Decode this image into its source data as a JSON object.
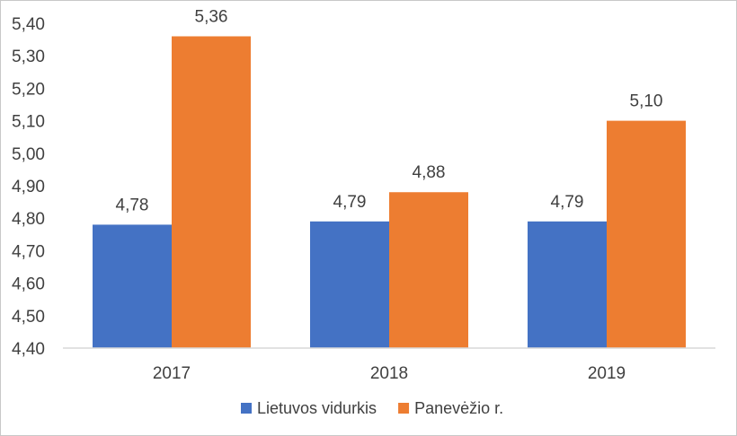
{
  "chart_data": {
    "type": "bar",
    "title": "",
    "xlabel": "",
    "ylabel": "",
    "categories": [
      "2017",
      "2018",
      "2019"
    ],
    "series": [
      {
        "name": "Lietuvos vidurkis",
        "values": [
          4.78,
          4.79,
          4.79
        ],
        "labels": [
          "4,78",
          "4,79",
          "4,79"
        ],
        "color": "#4472C4"
      },
      {
        "name": "Panevėžio r.",
        "values": [
          5.36,
          4.88,
          5.1
        ],
        "labels": [
          "5,36",
          "4,88",
          "5,10"
        ],
        "color": "#ED7D31"
      }
    ],
    "ylim": [
      4.4,
      5.4
    ],
    "yticks": [
      4.4,
      4.5,
      4.6,
      4.7,
      4.8,
      4.9,
      5.0,
      5.1,
      5.2,
      5.3,
      5.4
    ],
    "ytick_labels": [
      "4,40",
      "4,50",
      "4,60",
      "4,70",
      "4,80",
      "4,90",
      "5,00",
      "5,10",
      "5,20",
      "5,30",
      "5,40"
    ],
    "grid": false,
    "legend": "bottom",
    "axis_color": "#d9d9d9"
  }
}
